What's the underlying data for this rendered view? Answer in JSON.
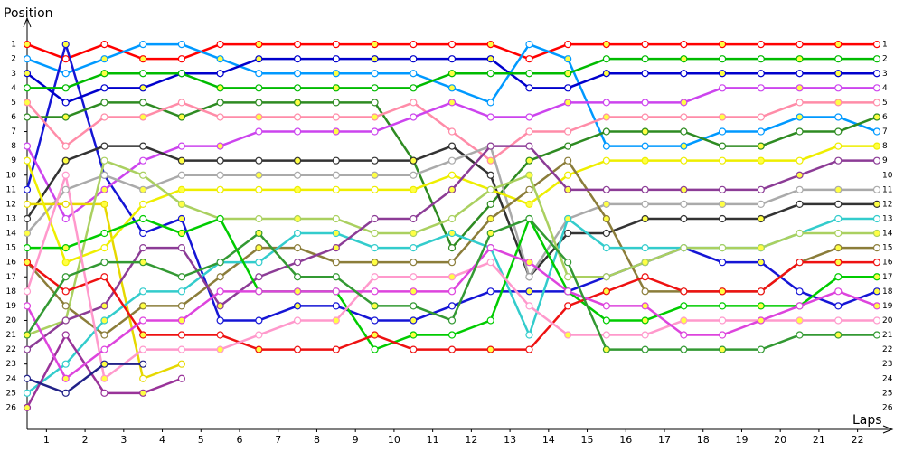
{
  "chart_data": {
    "type": "lap",
    "y_label": "Position",
    "x_label": "Laps",
    "x": [
      0,
      1,
      2,
      3,
      4,
      5,
      6,
      7,
      8,
      9,
      10,
      11,
      12,
      13,
      14,
      15,
      16,
      17,
      18,
      19,
      20,
      21,
      22
    ],
    "xlim": [
      0,
      22
    ],
    "ylim": [
      -0.5,
      27.5
    ],
    "y_inverted": true,
    "xticks": [
      {
        "value": 0.5,
        "label": "1"
      },
      {
        "value": 1.5,
        "label": "2"
      },
      {
        "value": 2.5,
        "label": "3"
      },
      {
        "value": 3.5,
        "label": "4"
      },
      {
        "value": 4.5,
        "label": "5"
      },
      {
        "value": 5.5,
        "label": "6"
      },
      {
        "value": 6.5,
        "label": "7"
      },
      {
        "value": 7.5,
        "label": "8"
      },
      {
        "value": 8.5,
        "label": "9"
      },
      {
        "value": 9.5,
        "label": "10"
      },
      {
        "value": 10.5,
        "label": "11"
      },
      {
        "value": 11.5,
        "label": "12"
      },
      {
        "value": 12.5,
        "label": "13"
      },
      {
        "value": 13.5,
        "label": "14"
      },
      {
        "value": 14.5,
        "label": "15"
      },
      {
        "value": 15.5,
        "label": "16"
      },
      {
        "value": 16.5,
        "label": "17"
      },
      {
        "value": 17.5,
        "label": "18"
      },
      {
        "value": 18.5,
        "label": "19"
      },
      {
        "value": 19.5,
        "label": "20"
      },
      {
        "value": 20.5,
        "label": "21"
      },
      {
        "value": 21.5,
        "label": "22"
      }
    ],
    "yticks": [
      1,
      2,
      3,
      4,
      5,
      6,
      7,
      8,
      9,
      10,
      11,
      12,
      13,
      14,
      15,
      16,
      17,
      18,
      19,
      20,
      21,
      22,
      23,
      24,
      25,
      26
    ],
    "series": [
      {
        "color": "#ff0000",
        "values": [
          1,
          2,
          1,
          2,
          2,
          1,
          1,
          1,
          1,
          1,
          1,
          1,
          1,
          2,
          1,
          1,
          1,
          1,
          1,
          1,
          1,
          1,
          1
        ]
      },
      {
        "color": "#0099ff",
        "values": [
          2,
          3,
          2,
          1,
          1,
          2,
          3,
          3,
          3,
          3,
          3,
          4,
          5,
          1,
          2,
          8,
          8,
          8,
          7,
          7,
          6,
          6,
          7
        ]
      },
      {
        "color": "#1515d5",
        "values": [
          11,
          1,
          10,
          14,
          13,
          20,
          20,
          19,
          19,
          20,
          20,
          19,
          18,
          18,
          18,
          17,
          16,
          15,
          16,
          16,
          18,
          19,
          18
        ]
      },
      {
        "color": "#0000cc",
        "values": [
          3,
          5,
          4,
          4,
          3,
          3,
          2,
          2,
          2,
          2,
          2,
          2,
          2,
          4,
          4,
          3,
          3,
          3,
          3,
          3,
          3,
          3,
          3
        ]
      },
      {
        "color": "#00bb00",
        "values": [
          4,
          4,
          3,
          3,
          3,
          4,
          4,
          4,
          4,
          4,
          4,
          3,
          3,
          3,
          3,
          2,
          2,
          2,
          2,
          2,
          2,
          2,
          2
        ]
      },
      {
        "color": "#2e8b22",
        "values": [
          6,
          6,
          5,
          5,
          6,
          5,
          5,
          5,
          5,
          5,
          9,
          15,
          12,
          9,
          8,
          7,
          7,
          7,
          8,
          8,
          7,
          7,
          6
        ]
      },
      {
        "color": "#ff8ca8",
        "values": [
          5,
          8,
          6,
          6,
          5,
          6,
          6,
          6,
          6,
          6,
          5,
          7,
          9,
          7,
          7,
          6,
          6,
          6,
          6,
          6,
          5,
          5,
          5
        ]
      },
      {
        "color": "#cc44ee",
        "values": [
          8,
          13,
          11,
          9,
          8,
          8,
          7,
          7,
          7,
          7,
          6,
          5,
          6,
          6,
          5,
          5,
          5,
          5,
          4,
          4,
          4,
          4,
          4
        ]
      },
      {
        "color": "#333333",
        "values": [
          13,
          9,
          8,
          8,
          9,
          9,
          9,
          9,
          9,
          9,
          9,
          8,
          10,
          17,
          14,
          14,
          13,
          13,
          13,
          13,
          12,
          12,
          12
        ]
      },
      {
        "color": "#aaaaaa",
        "values": [
          14,
          11,
          10,
          11,
          10,
          10,
          10,
          10,
          10,
          10,
          10,
          9,
          8,
          17,
          13,
          12,
          12,
          12,
          12,
          12,
          11,
          11,
          11
        ]
      },
      {
        "color": "#e6d800",
        "values": [
          12,
          12,
          12,
          24,
          23,
          null,
          null,
          null,
          null,
          null,
          null,
          null,
          null,
          null,
          null,
          null,
          null,
          null,
          null,
          null,
          null,
          null,
          null
        ]
      },
      {
        "color": "#eeee00",
        "values": [
          9,
          16,
          15,
          12,
          11,
          11,
          11,
          11,
          11,
          11,
          11,
          10,
          11,
          12,
          10,
          9,
          9,
          9,
          9,
          9,
          9,
          8,
          8
        ]
      },
      {
        "color": "#8b7d3a",
        "values": [
          16,
          19,
          21,
          19,
          19,
          17,
          15,
          15,
          16,
          16,
          16,
          16,
          13,
          11,
          9,
          13,
          18,
          18,
          18,
          18,
          16,
          15,
          15
        ]
      },
      {
        "color": "#33cccc",
        "values": [
          25,
          23,
          20,
          18,
          18,
          16,
          16,
          14,
          14,
          15,
          15,
          14,
          15,
          21,
          13,
          15,
          15,
          15,
          15,
          15,
          14,
          13,
          13
        ]
      },
      {
        "color": "#aad060",
        "values": [
          21,
          20,
          9,
          10,
          12,
          13,
          13,
          13,
          13,
          14,
          14,
          13,
          11,
          10,
          17,
          17,
          16,
          15,
          15,
          15,
          14,
          14,
          14
        ]
      },
      {
        "color": "#993399",
        "values": [
          26,
          21,
          25,
          25,
          24,
          null,
          null,
          null,
          null,
          null,
          null,
          null,
          null,
          null,
          null,
          null,
          null,
          null,
          null,
          null,
          null,
          null,
          null
        ]
      },
      {
        "color": "#8c3c96",
        "values": [
          22,
          20,
          19,
          15,
          15,
          19,
          17,
          16,
          15,
          13,
          13,
          11,
          8,
          8,
          11,
          11,
          11,
          11,
          11,
          11,
          10,
          9,
          9
        ]
      },
      {
        "color": "#00cc00",
        "values": [
          15,
          15,
          14,
          13,
          14,
          13,
          18,
          18,
          18,
          22,
          21,
          21,
          20,
          13,
          18,
          20,
          20,
          19,
          19,
          19,
          19,
          17,
          17
        ]
      },
      {
        "color": "#ee1111",
        "values": [
          16,
          18,
          17,
          21,
          21,
          21,
          22,
          22,
          22,
          21,
          22,
          22,
          22,
          22,
          19,
          18,
          17,
          18,
          18,
          18,
          16,
          16,
          16
        ]
      },
      {
        "color": "#ff99cc",
        "values": [
          18,
          10,
          24,
          22,
          22,
          22,
          21,
          20,
          20,
          17,
          17,
          17,
          16,
          19,
          21,
          21,
          21,
          20,
          20,
          20,
          20,
          20,
          20
        ]
      },
      {
        "color": "#dd44dd",
        "values": [
          19,
          24,
          22,
          20,
          20,
          18,
          18,
          18,
          18,
          18,
          18,
          18,
          15,
          16,
          18,
          19,
          19,
          21,
          21,
          20,
          19,
          18,
          19
        ]
      },
      {
        "color": "#339933",
        "values": [
          21,
          17,
          16,
          16,
          17,
          16,
          14,
          17,
          17,
          19,
          19,
          20,
          14,
          13,
          16,
          22,
          22,
          22,
          22,
          22,
          21,
          21,
          21
        ]
      },
      {
        "color": "#222288",
        "values": [
          24,
          25,
          23,
          23,
          null,
          null,
          null,
          null,
          null,
          null,
          null,
          null,
          null,
          null,
          null,
          null,
          null,
          null,
          null,
          null,
          null,
          null,
          null
        ]
      }
    ]
  }
}
